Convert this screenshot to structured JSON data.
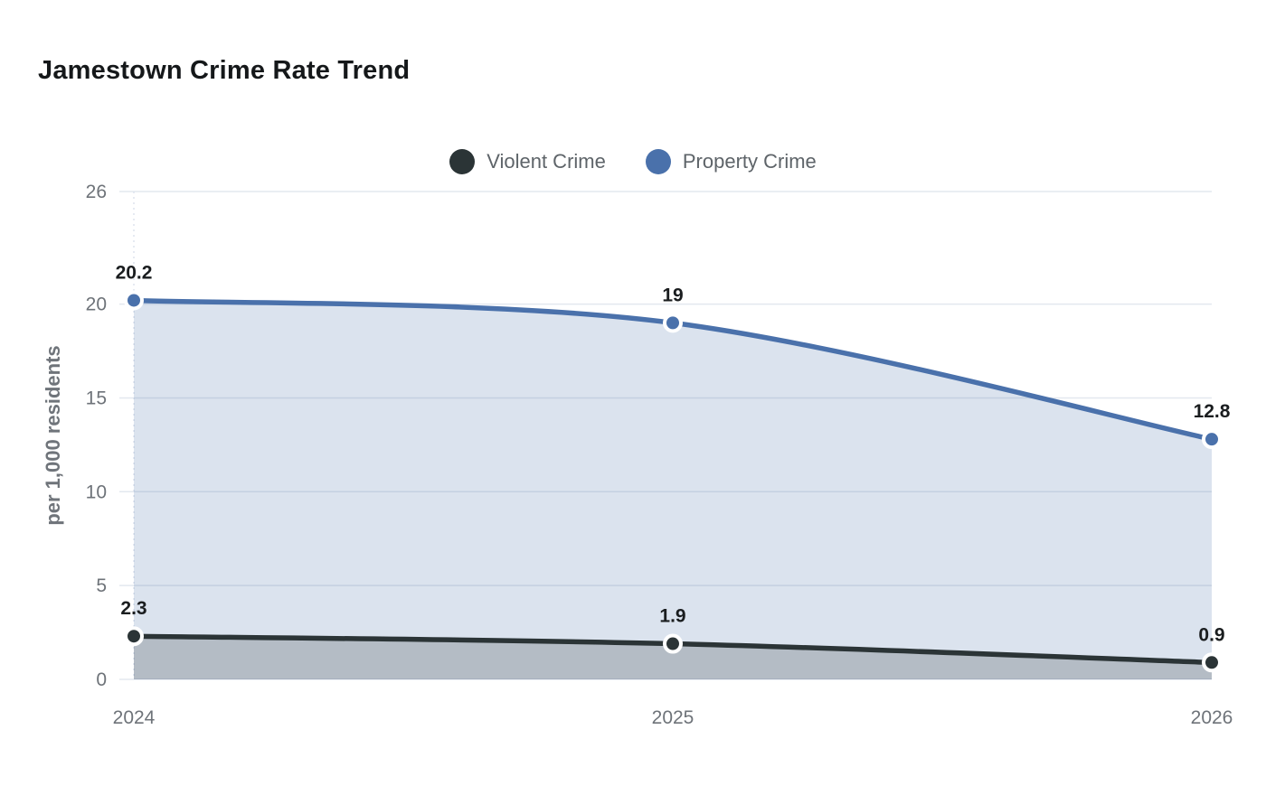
{
  "header": {
    "title": "Jamestown Crime Rate Trend"
  },
  "legend": {
    "items": [
      {
        "label": "Violent Crime",
        "color": "#2b3436"
      },
      {
        "label": "Property Crime",
        "color": "#4a71ab"
      }
    ]
  },
  "chart_data": {
    "type": "area",
    "title": "Jamestown Crime Rate Trend",
    "categories": [
      "2024",
      "2025",
      "2026"
    ],
    "series": [
      {
        "name": "Property Crime",
        "values": [
          20.2,
          19,
          12.8
        ],
        "color": "#4a71ab",
        "fill_opacity": 0.2
      },
      {
        "name": "Violent Crime",
        "values": [
          2.3,
          1.9,
          0.9
        ],
        "color": "#2b3436",
        "fill_opacity": 0.22
      }
    ],
    "xlabel": "",
    "ylabel": "per 1,000 residents",
    "yticks": [
      0,
      5,
      10,
      15,
      20,
      26
    ],
    "ylim": [
      0,
      26
    ],
    "grid": true,
    "smooth": true,
    "point_labels_shown": true,
    "legend_position": "top-center",
    "axis_label_color": "#6e7379",
    "grid_color": "#e3e8ef",
    "value_label_color": "#1a1d1f"
  }
}
